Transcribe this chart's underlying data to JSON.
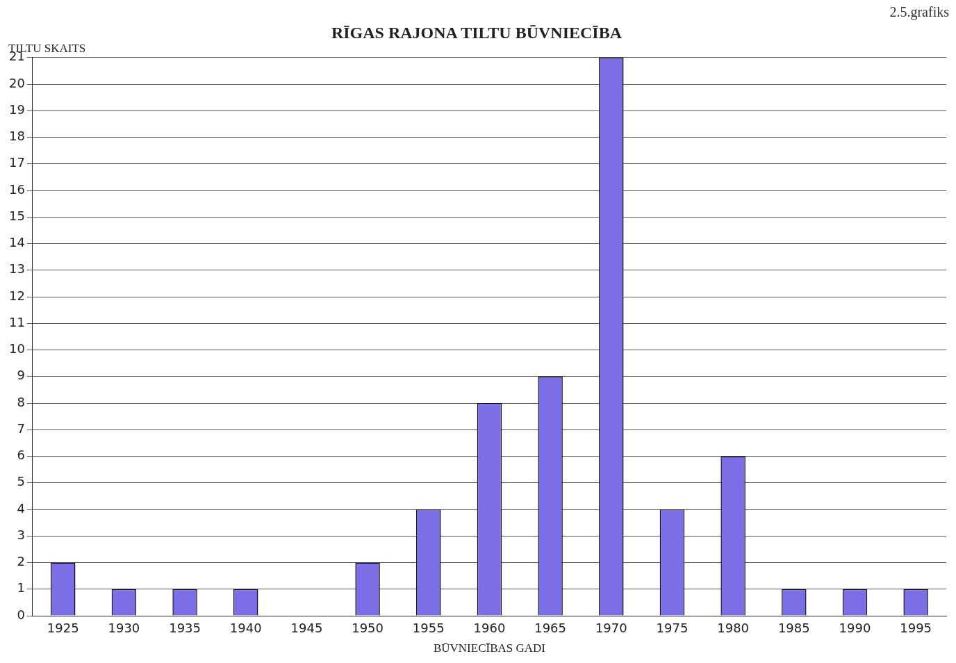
{
  "chart_data": {
    "type": "bar",
    "title": "RĪGAS RAJONA TILTU BŪVNIECĪBA",
    "xlabel": "BŪVNIECĪBAS GADI",
    "ylabel": "TILTU SKAITS",
    "annotations": [
      "2.5.grafiks"
    ],
    "categories": [
      "1925",
      "1930",
      "1935",
      "1940",
      "1945",
      "1950",
      "1955",
      "1960",
      "1965",
      "1970",
      "1975",
      "1980",
      "1985",
      "1990",
      "1995"
    ],
    "values": [
      2,
      1,
      1,
      1,
      0,
      2,
      4,
      8,
      9,
      21,
      4,
      6,
      1,
      1,
      1
    ],
    "color": "#7b6ee6",
    "ylim": [
      0,
      21
    ],
    "yticks": [
      0,
      1,
      2,
      3,
      4,
      5,
      6,
      7,
      8,
      9,
      10,
      11,
      12,
      13,
      14,
      15,
      16,
      17,
      18,
      19,
      20,
      21
    ],
    "grid": "y",
    "legend": false
  }
}
